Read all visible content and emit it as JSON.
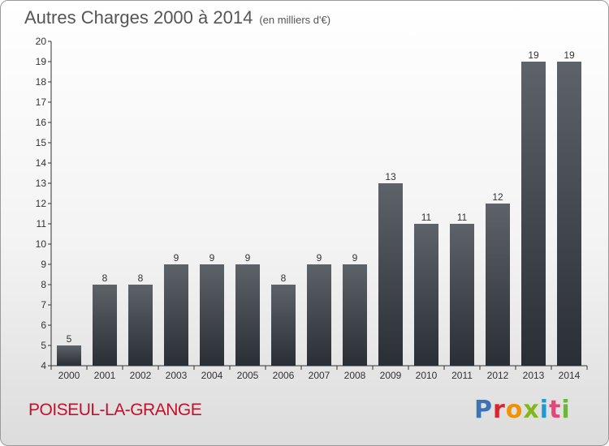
{
  "title": "Autres Charges 2000 à 2014",
  "unit": "(en milliers d'€)",
  "commune": "POISEUL-LA-GRANGE",
  "logo": "Proxiti",
  "chart_data": {
    "type": "bar",
    "title": "Autres Charges 2000 à 2014",
    "subtitle": "(en milliers d'€)",
    "categories": [
      "2000",
      "2001",
      "2002",
      "2003",
      "2004",
      "2005",
      "2006",
      "2007",
      "2008",
      "2009",
      "2010",
      "2011",
      "2012",
      "2013",
      "2014"
    ],
    "values": [
      5,
      8,
      8,
      9,
      9,
      9,
      8,
      9,
      9,
      13,
      11,
      11,
      12,
      19,
      19
    ],
    "ylim": [
      4,
      20
    ],
    "yticks": [
      4,
      5,
      6,
      7,
      8,
      9,
      10,
      11,
      12,
      13,
      14,
      15,
      16,
      17,
      18,
      19,
      20
    ],
    "grid": false,
    "colors": {
      "bar_top": "#5e6369",
      "bar_bottom": "#2a2f35",
      "commune": "#c0122b"
    }
  }
}
